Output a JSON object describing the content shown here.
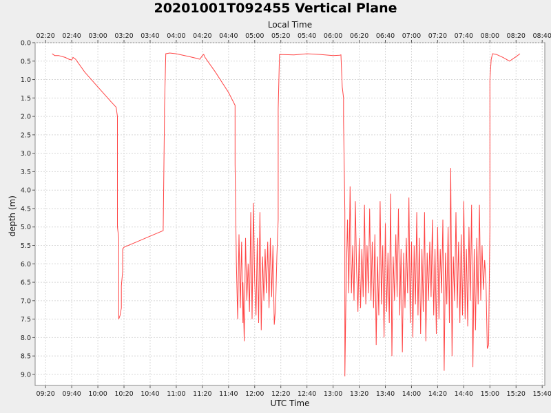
{
  "chart_data": {
    "type": "line",
    "title": "20201001T092455 Vertical Plane",
    "xlabel": "UTC Time",
    "x2label": "Local Time",
    "ylabel": "depth (m)",
    "ylim": [
      0.0,
      9.3
    ],
    "y_inverted": true,
    "y_ticks": [
      "0.0",
      "0.5",
      "1.0",
      "1.5",
      "2.0",
      "2.5",
      "3.0",
      "3.5",
      "4.0",
      "4.5",
      "5.0",
      "5.5",
      "6.0",
      "6.5",
      "7.0",
      "7.5",
      "8.0",
      "8.5",
      "9.0"
    ],
    "xlim": [
      "09:12",
      "15:42"
    ],
    "x_ticks_utc": [
      "09:20",
      "09:40",
      "10:00",
      "10:20",
      "10:40",
      "11:00",
      "11:20",
      "11:40",
      "12:00",
      "12:20",
      "12:40",
      "13:00",
      "13:20",
      "13:40",
      "14:00",
      "14:20",
      "14:40",
      "15:00",
      "15:20",
      "15:40"
    ],
    "x_ticks_local": [
      "02:20",
      "02:40",
      "03:00",
      "03:20",
      "03:40",
      "04:00",
      "04:20",
      "04:40",
      "05:00",
      "05:20",
      "05:40",
      "06:00",
      "06:20",
      "06:40",
      "07:00",
      "07:20",
      "07:40",
      "08:00",
      "08:20",
      "08:40"
    ],
    "grid": true,
    "series": [
      {
        "color": "#ff4444",
        "points": [
          [
            "09:25",
            0.3
          ],
          [
            "09:27",
            0.35
          ],
          [
            "09:30",
            0.35
          ],
          [
            "09:35",
            0.4
          ],
          [
            "09:38",
            0.45
          ],
          [
            "09:40",
            0.47
          ],
          [
            "09:41",
            0.4
          ],
          [
            "09:43",
            0.45
          ],
          [
            "09:50",
            0.8
          ],
          [
            "10:00",
            1.2
          ],
          [
            "10:10",
            1.6
          ],
          [
            "10:14",
            1.75
          ],
          [
            "10:15",
            2.0
          ],
          [
            "10:15",
            5.0
          ],
          [
            "10:16",
            5.3
          ],
          [
            "10:16",
            7.5
          ],
          [
            "10:17",
            7.4
          ],
          [
            "10:18",
            7.2
          ],
          [
            "10:18",
            6.6
          ],
          [
            "10:19",
            6.2
          ],
          [
            "10:19",
            5.6
          ],
          [
            "10:20",
            5.55
          ],
          [
            "10:30",
            5.4
          ],
          [
            "10:40",
            5.25
          ],
          [
            "10:50",
            5.1
          ],
          [
            "10:51",
            2.0
          ],
          [
            "10:51",
            1.8
          ],
          [
            "10:52",
            0.3
          ],
          [
            "10:55",
            0.28
          ],
          [
            "11:00",
            0.3
          ],
          [
            "11:10",
            0.38
          ],
          [
            "11:15",
            0.42
          ],
          [
            "11:18",
            0.45
          ],
          [
            "11:20",
            0.35
          ],
          [
            "11:21",
            0.32
          ],
          [
            "11:22",
            0.4
          ],
          [
            "11:30",
            0.8
          ],
          [
            "11:40",
            1.35
          ],
          [
            "11:45",
            1.7
          ],
          [
            "11:45",
            3.3
          ],
          [
            "11:46",
            6.0
          ],
          [
            "11:47",
            7.5
          ],
          [
            "11:48",
            5.2
          ],
          [
            "11:49",
            7.2
          ],
          [
            "11:50",
            5.4
          ],
          [
            "11:51",
            7.6
          ],
          [
            "11:51",
            6.5
          ],
          [
            "11:52",
            8.1
          ],
          [
            "11:53",
            5.3
          ],
          [
            "11:54",
            7.0
          ],
          [
            "11:55",
            6.0
          ],
          [
            "11:56",
            7.3
          ],
          [
            "11:57",
            4.6
          ],
          [
            "11:58",
            7.5
          ],
          [
            "11:59",
            4.35
          ],
          [
            "12:00",
            6.5
          ],
          [
            "12:01",
            7.4
          ],
          [
            "12:02",
            5.3
          ],
          [
            "12:03",
            7.6
          ],
          [
            "12:04",
            4.6
          ],
          [
            "12:05",
            7.8
          ],
          [
            "12:06",
            5.8
          ],
          [
            "12:07",
            7.0
          ],
          [
            "12:08",
            5.6
          ],
          [
            "12:09",
            6.8
          ],
          [
            "12:10",
            5.4
          ],
          [
            "12:11",
            7.2
          ],
          [
            "12:12",
            5.3
          ],
          [
            "12:13",
            6.9
          ],
          [
            "12:14",
            5.5
          ],
          [
            "12:15",
            7.65
          ],
          [
            "12:16",
            7.2
          ],
          [
            "12:17",
            5.8
          ],
          [
            "12:18",
            4.8
          ],
          [
            "12:18",
            1.8
          ],
          [
            "12:19",
            0.32
          ],
          [
            "12:30",
            0.33
          ],
          [
            "12:40",
            0.3
          ],
          [
            "12:50",
            0.32
          ],
          [
            "13:00",
            0.35
          ],
          [
            "13:05",
            0.34
          ],
          [
            "13:06",
            0.33
          ],
          [
            "13:07",
            1.2
          ],
          [
            "13:08",
            1.5
          ],
          [
            "13:08",
            2.1
          ],
          [
            "13:09",
            4.6
          ],
          [
            "13:09",
            9.05
          ],
          [
            "13:10",
            6.5
          ],
          [
            "13:11",
            4.8
          ],
          [
            "13:12",
            6.8
          ],
          [
            "13:13",
            3.9
          ],
          [
            "13:14",
            6.8
          ],
          [
            "13:15",
            5.5
          ],
          [
            "13:16",
            7.0
          ],
          [
            "13:17",
            4.3
          ],
          [
            "13:18",
            6.2
          ],
          [
            "13:19",
            7.3
          ],
          [
            "13:20",
            5.3
          ],
          [
            "13:21",
            7.2
          ],
          [
            "13:22",
            5.6
          ],
          [
            "13:23",
            6.9
          ],
          [
            "13:24",
            4.4
          ],
          [
            "13:25",
            7.1
          ],
          [
            "13:26",
            5.5
          ],
          [
            "13:27",
            6.8
          ],
          [
            "13:28",
            4.5
          ],
          [
            "13:29",
            7.0
          ],
          [
            "13:30",
            5.4
          ],
          [
            "13:31",
            7.2
          ],
          [
            "13:32",
            5.2
          ],
          [
            "13:33",
            8.2
          ],
          [
            "13:34",
            5.8
          ],
          [
            "13:35",
            7.4
          ],
          [
            "13:36",
            4.3
          ],
          [
            "13:37",
            7.1
          ],
          [
            "13:38",
            5.5
          ],
          [
            "13:39",
            8.0
          ],
          [
            "13:40",
            4.9
          ],
          [
            "13:41",
            7.3
          ],
          [
            "13:42",
            5.7
          ],
          [
            "13:43",
            7.6
          ],
          [
            "13:44",
            4.1
          ],
          [
            "13:45",
            8.5
          ],
          [
            "13:46",
            5.8
          ],
          [
            "13:47",
            7.0
          ],
          [
            "13:48",
            5.2
          ],
          [
            "13:49",
            6.9
          ],
          [
            "13:50",
            4.5
          ],
          [
            "13:51",
            7.4
          ],
          [
            "13:52",
            5.6
          ],
          [
            "13:53",
            8.4
          ],
          [
            "13:54",
            5.7
          ],
          [
            "13:55",
            7.2
          ],
          [
            "13:56",
            5.3
          ],
          [
            "13:57",
            6.8
          ],
          [
            "13:58",
            4.2
          ],
          [
            "13:59",
            7.6
          ],
          [
            "14:00",
            5.4
          ],
          [
            "14:01",
            8.0
          ],
          [
            "14:02",
            5.5
          ],
          [
            "14:03",
            7.1
          ],
          [
            "14:04",
            4.6
          ],
          [
            "14:05",
            7.4
          ],
          [
            "14:06",
            5.3
          ],
          [
            "14:07",
            7.9
          ],
          [
            "14:08",
            5.6
          ],
          [
            "14:09",
            7.3
          ],
          [
            "14:10",
            4.6
          ],
          [
            "14:11",
            8.1
          ],
          [
            "14:12",
            5.7
          ],
          [
            "14:13",
            7.0
          ],
          [
            "14:14",
            5.4
          ],
          [
            "14:15",
            6.9
          ],
          [
            "14:16",
            4.8
          ],
          [
            "14:17",
            7.4
          ],
          [
            "14:18",
            5.6
          ],
          [
            "14:19",
            7.9
          ],
          [
            "14:20",
            5.0
          ],
          [
            "14:21",
            7.5
          ],
          [
            "14:22",
            5.6
          ],
          [
            "14:23",
            6.8
          ],
          [
            "14:24",
            4.8
          ],
          [
            "14:25",
            8.9
          ],
          [
            "14:26",
            5.7
          ],
          [
            "14:27",
            7.1
          ],
          [
            "14:28",
            5.0
          ],
          [
            "14:29",
            7.6
          ],
          [
            "14:30",
            3.4
          ],
          [
            "14:31",
            8.5
          ],
          [
            "14:32",
            5.8
          ],
          [
            "14:33",
            7.0
          ],
          [
            "14:34",
            4.6
          ],
          [
            "14:35",
            7.2
          ],
          [
            "14:36",
            5.4
          ],
          [
            "14:37",
            7.6
          ],
          [
            "14:38",
            5.2
          ],
          [
            "14:39",
            7.4
          ],
          [
            "14:40",
            4.3
          ],
          [
            "14:41",
            7.5
          ],
          [
            "14:42",
            5.6
          ],
          [
            "14:43",
            7.7
          ],
          [
            "14:44",
            5.0
          ],
          [
            "14:45",
            7.0
          ],
          [
            "14:46",
            4.4
          ],
          [
            "14:47",
            8.8
          ],
          [
            "14:48",
            5.6
          ],
          [
            "14:49",
            7.8
          ],
          [
            "14:50",
            5.3
          ],
          [
            "14:51",
            7.1
          ],
          [
            "14:52",
            4.4
          ],
          [
            "14:53",
            7.0
          ],
          [
            "14:54",
            5.5
          ],
          [
            "14:55",
            6.7
          ],
          [
            "14:56",
            5.9
          ],
          [
            "14:57",
            6.5
          ],
          [
            "14:58",
            8.3
          ],
          [
            "14:59",
            8.2
          ],
          [
            "15:00",
            5.0
          ],
          [
            "15:00",
            1.0
          ],
          [
            "15:01",
            0.45
          ],
          [
            "15:02",
            0.3
          ],
          [
            "15:05",
            0.32
          ],
          [
            "15:10",
            0.4
          ],
          [
            "15:15",
            0.5
          ],
          [
            "15:20",
            0.38
          ],
          [
            "15:23",
            0.3
          ]
        ]
      }
    ]
  }
}
